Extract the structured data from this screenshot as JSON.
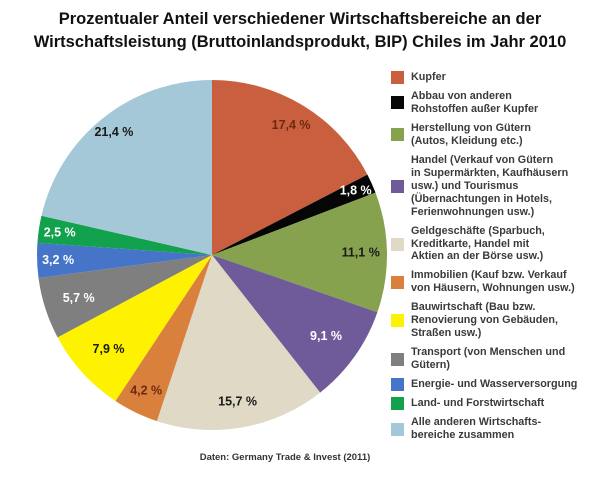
{
  "title": "Prozentualer Anteil verschiedener Wirtschaftsbereiche an der\nWirtschaftsleistung (Bruttoinlandsprodukt, BIP) Chiles im Jahr 2010",
  "source": "Daten: Germany Trade & Invest (2011)",
  "chart_data": {
    "type": "pie",
    "title": "Prozentualer Anteil verschiedener Wirtschaftsbereiche an der Wirtschaftsleistung (Bruttoinlandsprodukt, BIP) Chiles im Jahr 2010",
    "unit": "%",
    "total": 100,
    "start_angle_deg": 0,
    "direction": "clockwise",
    "legend_position": "right",
    "slices": [
      {
        "id": "kupfer",
        "legend": "Kupfer",
        "value": 17.4,
        "display": "17,4 %",
        "color": "#C95F3E",
        "text_color": "#6E2A10",
        "label_r": 0.87
      },
      {
        "id": "abbau-andere-rohstoffe",
        "legend": "Abbau von anderen\nRohstoffen außer Kupfer",
        "value": 1.8,
        "display": "1,8 %",
        "color": "#060606",
        "text_color": "#FFFFFF",
        "label_r": 0.9
      },
      {
        "id": "herstellung-gueter",
        "legend": "Herstellung von Gütern\n(Autos, Kleidung etc.)",
        "value": 11.1,
        "display": "11,1 %",
        "color": "#87A24E",
        "text_color": "#1A1A1A",
        "label_r": 0.85
      },
      {
        "id": "handel-tourismus",
        "legend": "Handel (Verkauf von Gütern\nin Supermärkten, Kaufhäusern\nusw.) und Tourismus\n(Übernachtungen in Hotels,\nFerienwohnungen usw.)",
        "value": 9.1,
        "display": "9,1 %",
        "color": "#6F5B99",
        "text_color": "#FFFFFF",
        "label_r": 0.8
      },
      {
        "id": "geldgeschaefte",
        "legend": "Geldgeschäfte (Sparbuch,\nKreditkarte, Handel mit\nAktien an der Börse usw.)",
        "value": 15.7,
        "display": "15,7 %",
        "color": "#DFD9C6",
        "text_color": "#1A1A1A",
        "label_r": 0.85
      },
      {
        "id": "immobilien",
        "legend": "Immobilien (Kauf bzw. Verkauf\nvon Häusern, Wohnungen usw.)",
        "value": 4.2,
        "display": "4,2 %",
        "color": "#D9803C",
        "text_color": "#6E2A10",
        "label_r": 0.86
      },
      {
        "id": "bauwirtschaft",
        "legend": "Bauwirtschaft (Bau bzw.\nRenovierung von Gebäuden,\nStraßen usw.)",
        "value": 7.9,
        "display": "7,9 %",
        "color": "#FEF200",
        "text_color": "#1A1A1A",
        "label_r": 0.8
      },
      {
        "id": "transport",
        "legend": "Transport (von Menschen und\nGütern)",
        "value": 5.7,
        "display": "5,7 %",
        "color": "#7F7F7F",
        "text_color": "#FFFFFF",
        "label_r": 0.8
      },
      {
        "id": "energie-wasser",
        "legend": "Energie- und Wasserversorgung",
        "value": 3.2,
        "display": "3,2 %",
        "color": "#4674C8",
        "text_color": "#FFFFFF",
        "label_r": 0.88
      },
      {
        "id": "land-forstwirtschaft",
        "legend": "Land- und Forstwirtschaft",
        "value": 2.5,
        "display": "2,5 %",
        "color": "#12A24E",
        "text_color": "#FFFFFF",
        "label_r": 0.88
      },
      {
        "id": "alle-anderen",
        "legend": "Alle anderen Wirtschafts-\nbereiche zusammen",
        "value": 21.4,
        "display": "21,4 %",
        "color": "#A5C8D8",
        "text_color": "#1A1A1A",
        "label_r": 0.9
      }
    ]
  }
}
